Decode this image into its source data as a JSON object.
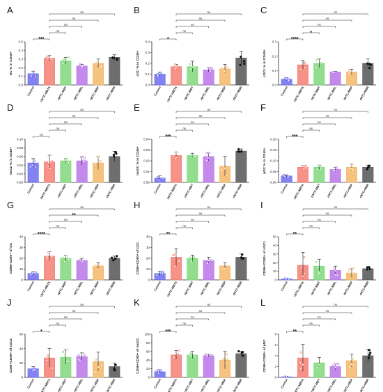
{
  "figure": {
    "groups": [
      "Control",
      "rWTC-MBTA",
      "rWTC-MBT",
      "rWTC-MBL",
      "rWTC-MBP",
      "rWTC-MBR"
    ],
    "group_colors": [
      "#6c6cf0",
      "#f47f73",
      "#7fd87a",
      "#b876e8",
      "#f4b768",
      "#555555"
    ],
    "error_color": "#111111"
  },
  "chart_data": [
    {
      "panel": "A",
      "type": "bar",
      "ylabel": "DC % in CD45+",
      "ylim": [
        0,
        0.5
      ],
      "yticks": [
        "0.0",
        "0.1",
        "0.2",
        "0.3",
        "0.4",
        "0.5"
      ],
      "values": [
        0.13,
        0.31,
        0.28,
        0.22,
        0.25,
        0.32
      ],
      "errors": [
        0.03,
        0.03,
        0.04,
        0.02,
        0.05,
        0.03
      ],
      "comparisons": [
        {
          "to": 1,
          "label": "***"
        },
        {
          "to": 2,
          "label": "ns"
        },
        {
          "to": 3,
          "label": "ns"
        },
        {
          "to": 4,
          "label": "ns"
        },
        {
          "to": 5,
          "label": "ns"
        }
      ]
    },
    {
      "panel": "B",
      "type": "bar",
      "ylabel": "cDC % in CD45+",
      "ylim": [
        0,
        0.4
      ],
      "yticks": [
        "0.0",
        "0.1",
        "0.2",
        "0.3",
        "0.4"
      ],
      "values": [
        0.1,
        0.17,
        0.17,
        0.14,
        0.15,
        0.25
      ],
      "errors": [
        0.02,
        0.02,
        0.05,
        0.02,
        0.04,
        0.06
      ],
      "comparisons": [
        {
          "to": 1,
          "label": "*"
        },
        {
          "to": 2,
          "label": "ns"
        },
        {
          "to": 3,
          "label": "ns"
        },
        {
          "to": 4,
          "label": "ns"
        },
        {
          "to": 5,
          "label": "ns"
        }
      ]
    },
    {
      "panel": "C",
      "type": "bar",
      "ylabel": "cDC1 % in CD45+",
      "ylim": [
        0,
        0.3
      ],
      "yticks": [
        "0.0",
        "0.1",
        "0.2",
        "0.3"
      ],
      "values": [
        0.04,
        0.14,
        0.15,
        0.09,
        0.09,
        0.15
      ],
      "errors": [
        0.01,
        0.03,
        0.03,
        0.005,
        0.02,
        0.03
      ],
      "comparisons": [
        {
          "to": 1,
          "label": "****"
        },
        {
          "to": 2,
          "label": "*"
        },
        {
          "to": 3,
          "label": "ns"
        },
        {
          "to": 4,
          "label": "ns"
        },
        {
          "to": 5,
          "label": "ns"
        }
      ]
    },
    {
      "panel": "D",
      "type": "bar",
      "ylabel": "cDC2 % in CD45+",
      "ylim": [
        0,
        0.1
      ],
      "yticks": [
        "0.00",
        "0.02",
        "0.04",
        "0.06",
        "0.08",
        "0.10"
      ],
      "values": [
        0.045,
        0.048,
        0.05,
        0.05,
        0.045,
        0.06
      ],
      "errors": [
        0.01,
        0.015,
        0.005,
        0.01,
        0.015,
        0.012
      ],
      "comparisons": [
        {
          "to": 1,
          "label": "ns"
        },
        {
          "to": 2,
          "label": "ns"
        },
        {
          "to": 3,
          "label": "ns"
        },
        {
          "to": 4,
          "label": "ns"
        },
        {
          "to": 5,
          "label": "ns"
        }
      ]
    },
    {
      "panel": "E",
      "type": "bar",
      "ylabel": "moDC % in CD45+",
      "ylim": [
        0,
        0.04
      ],
      "yticks": [
        "0.00",
        "0.01",
        "0.02",
        "0.03",
        "0.04"
      ],
      "values": [
        0.004,
        0.025,
        0.025,
        0.024,
        0.015,
        0.029
      ],
      "errors": [
        0.002,
        0.003,
        0.002,
        0.004,
        0.009,
        0.002
      ],
      "comparisons": [
        {
          "to": 1,
          "label": "***"
        },
        {
          "to": 2,
          "label": "ns"
        },
        {
          "to": 3,
          "label": "ns"
        },
        {
          "to": 4,
          "label": "ns"
        },
        {
          "to": 5,
          "label": "ns"
        }
      ]
    },
    {
      "panel": "F",
      "type": "bar",
      "ylabel": "pDC % in CD45+",
      "ylim": [
        0,
        0.2
      ],
      "yticks": [
        "0.00",
        "0.05",
        "0.10",
        "0.15",
        "0.20"
      ],
      "values": [
        0.03,
        0.07,
        0.07,
        0.06,
        0.07,
        0.07
      ],
      "errors": [
        0.005,
        0.008,
        0.01,
        0.01,
        0.015,
        0.01
      ],
      "comparisons": [
        {
          "to": 1,
          "label": "***"
        },
        {
          "to": 2,
          "label": "ns"
        },
        {
          "to": 3,
          "label": "ns"
        },
        {
          "to": 4,
          "label": "ns"
        },
        {
          "to": 5,
          "label": "ns"
        }
      ]
    },
    {
      "panel": "G",
      "type": "bar",
      "ylabel": "CD86+CD80+ of DC",
      "ylim": [
        0,
        40
      ],
      "yticks": [
        "0",
        "10",
        "20",
        "30",
        "40"
      ],
      "values": [
        6,
        22,
        20,
        18,
        13,
        20
      ],
      "errors": [
        1.5,
        4,
        3,
        2,
        3,
        2
      ],
      "comparisons": [
        {
          "to": 1,
          "label": "****"
        },
        {
          "to": 2,
          "label": "ns"
        },
        {
          "to": 3,
          "label": "ns"
        },
        {
          "to": 4,
          "label": "**"
        },
        {
          "to": 5,
          "label": "ns"
        }
      ]
    },
    {
      "panel": "H",
      "type": "bar",
      "ylabel": "CD86+CD80+ of cDC",
      "ylim": [
        0,
        40
      ],
      "yticks": [
        "0",
        "10",
        "20",
        "30",
        "40"
      ],
      "values": [
        6,
        21,
        20,
        18,
        13,
        21
      ],
      "errors": [
        2,
        8,
        3,
        3,
        3,
        3
      ],
      "comparisons": [
        {
          "to": 1,
          "label": "**"
        },
        {
          "to": 2,
          "label": "ns"
        },
        {
          "to": 3,
          "label": "ns"
        },
        {
          "to": 4,
          "label": "ns"
        },
        {
          "to": 5,
          "label": "ns"
        }
      ]
    },
    {
      "panel": "I",
      "type": "bar",
      "ylabel": "CD86+CD80+ of cDC1",
      "ylim": [
        0,
        50
      ],
      "yticks": [
        "0",
        "10",
        "20",
        "30",
        "40",
        "50"
      ],
      "values": [
        1,
        17,
        16,
        11,
        8,
        13
      ],
      "errors": [
        1,
        15,
        8,
        5,
        5,
        2
      ],
      "comparisons": [
        {
          "to": 1,
          "label": "**"
        },
        {
          "to": 2,
          "label": "ns"
        },
        {
          "to": 3,
          "label": "ns"
        },
        {
          "to": 4,
          "label": "ns"
        },
        {
          "to": 5,
          "label": "ns"
        }
      ]
    },
    {
      "panel": "J",
      "type": "bar",
      "ylabel": "CD86+CD80+ of cDC2",
      "ylim": [
        0,
        60
      ],
      "yticks": [
        "0",
        "20",
        "40",
        "60"
      ],
      "values": [
        12,
        27,
        28,
        29,
        22,
        15
      ],
      "errors": [
        3,
        13,
        10,
        5,
        13,
        5
      ],
      "comparisons": [
        {
          "to": 1,
          "label": "*"
        },
        {
          "to": 2,
          "label": "ns"
        },
        {
          "to": 3,
          "label": "ns"
        },
        {
          "to": 4,
          "label": "ns"
        },
        {
          "to": 5,
          "label": "ns"
        }
      ]
    },
    {
      "panel": "K",
      "type": "bar",
      "ylabel": "CD86+CD80+ of moDC",
      "ylim": [
        0,
        100
      ],
      "yticks": [
        "0",
        "20",
        "40",
        "60",
        "80",
        "100"
      ],
      "values": [
        13,
        52,
        52,
        50,
        40,
        55
      ],
      "errors": [
        4,
        10,
        8,
        3,
        20,
        5
      ],
      "comparisons": [
        {
          "to": 1,
          "label": "***"
        },
        {
          "to": 2,
          "label": "ns"
        },
        {
          "to": 3,
          "label": "ns"
        },
        {
          "to": 4,
          "label": "ns"
        },
        {
          "to": 5,
          "label": "ns"
        }
      ]
    },
    {
      "panel": "L",
      "type": "bar",
      "ylabel": "CD86+CD80+ of pDC",
      "ylim": [
        0,
        8
      ],
      "yticks": [
        "0",
        "2",
        "4",
        "6",
        "8"
      ],
      "values": [
        0.1,
        3.6,
        2.7,
        2.0,
        3.1,
        4.0
      ],
      "errors": [
        0.05,
        2.5,
        1.0,
        0.6,
        1.2,
        1.2
      ],
      "comparisons": [
        {
          "to": 1,
          "label": "**"
        },
        {
          "to": 2,
          "label": "ns"
        },
        {
          "to": 3,
          "label": "ns"
        },
        {
          "to": 4,
          "label": "ns"
        },
        {
          "to": 5,
          "label": "ns"
        }
      ]
    }
  ]
}
